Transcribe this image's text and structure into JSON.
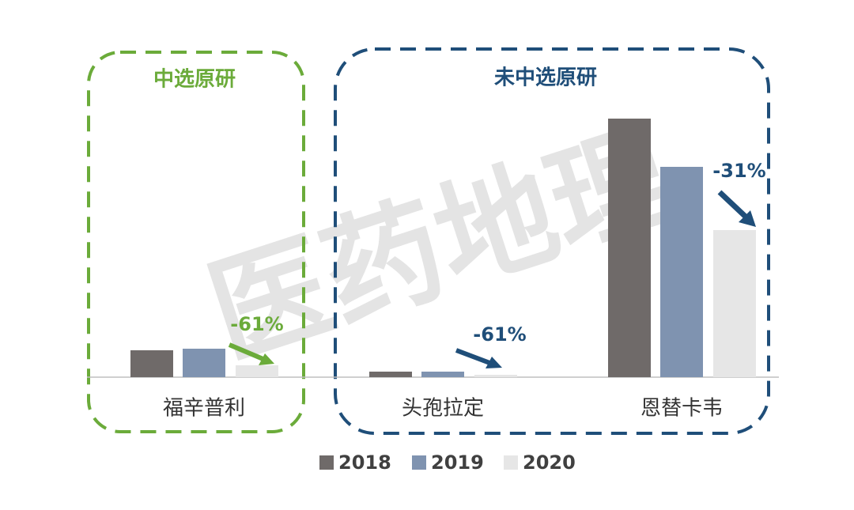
{
  "chart_data": {
    "type": "bar",
    "categories": [
      "福辛普利",
      "头孢拉定",
      "恩替卡韦"
    ],
    "series": [
      {
        "name": "2018",
        "color": "#6f6a69",
        "values": [
          34,
          7,
          327
        ]
      },
      {
        "name": "2019",
        "color": "#7f93b0",
        "values": [
          36,
          7,
          266
        ]
      },
      {
        "name": "2020",
        "color": "#e6e6e6",
        "values": [
          15,
          3,
          186
        ]
      }
    ],
    "ylim": [
      0,
      340
    ],
    "groups": [
      {
        "label": "中选原研",
        "color": "#6bab3a"
      },
      {
        "label": "未中选原研",
        "color": "#1f4e79"
      }
    ],
    "annotations": [
      "-61%",
      "-61%",
      "-31%"
    ],
    "watermark": "医药地理"
  }
}
